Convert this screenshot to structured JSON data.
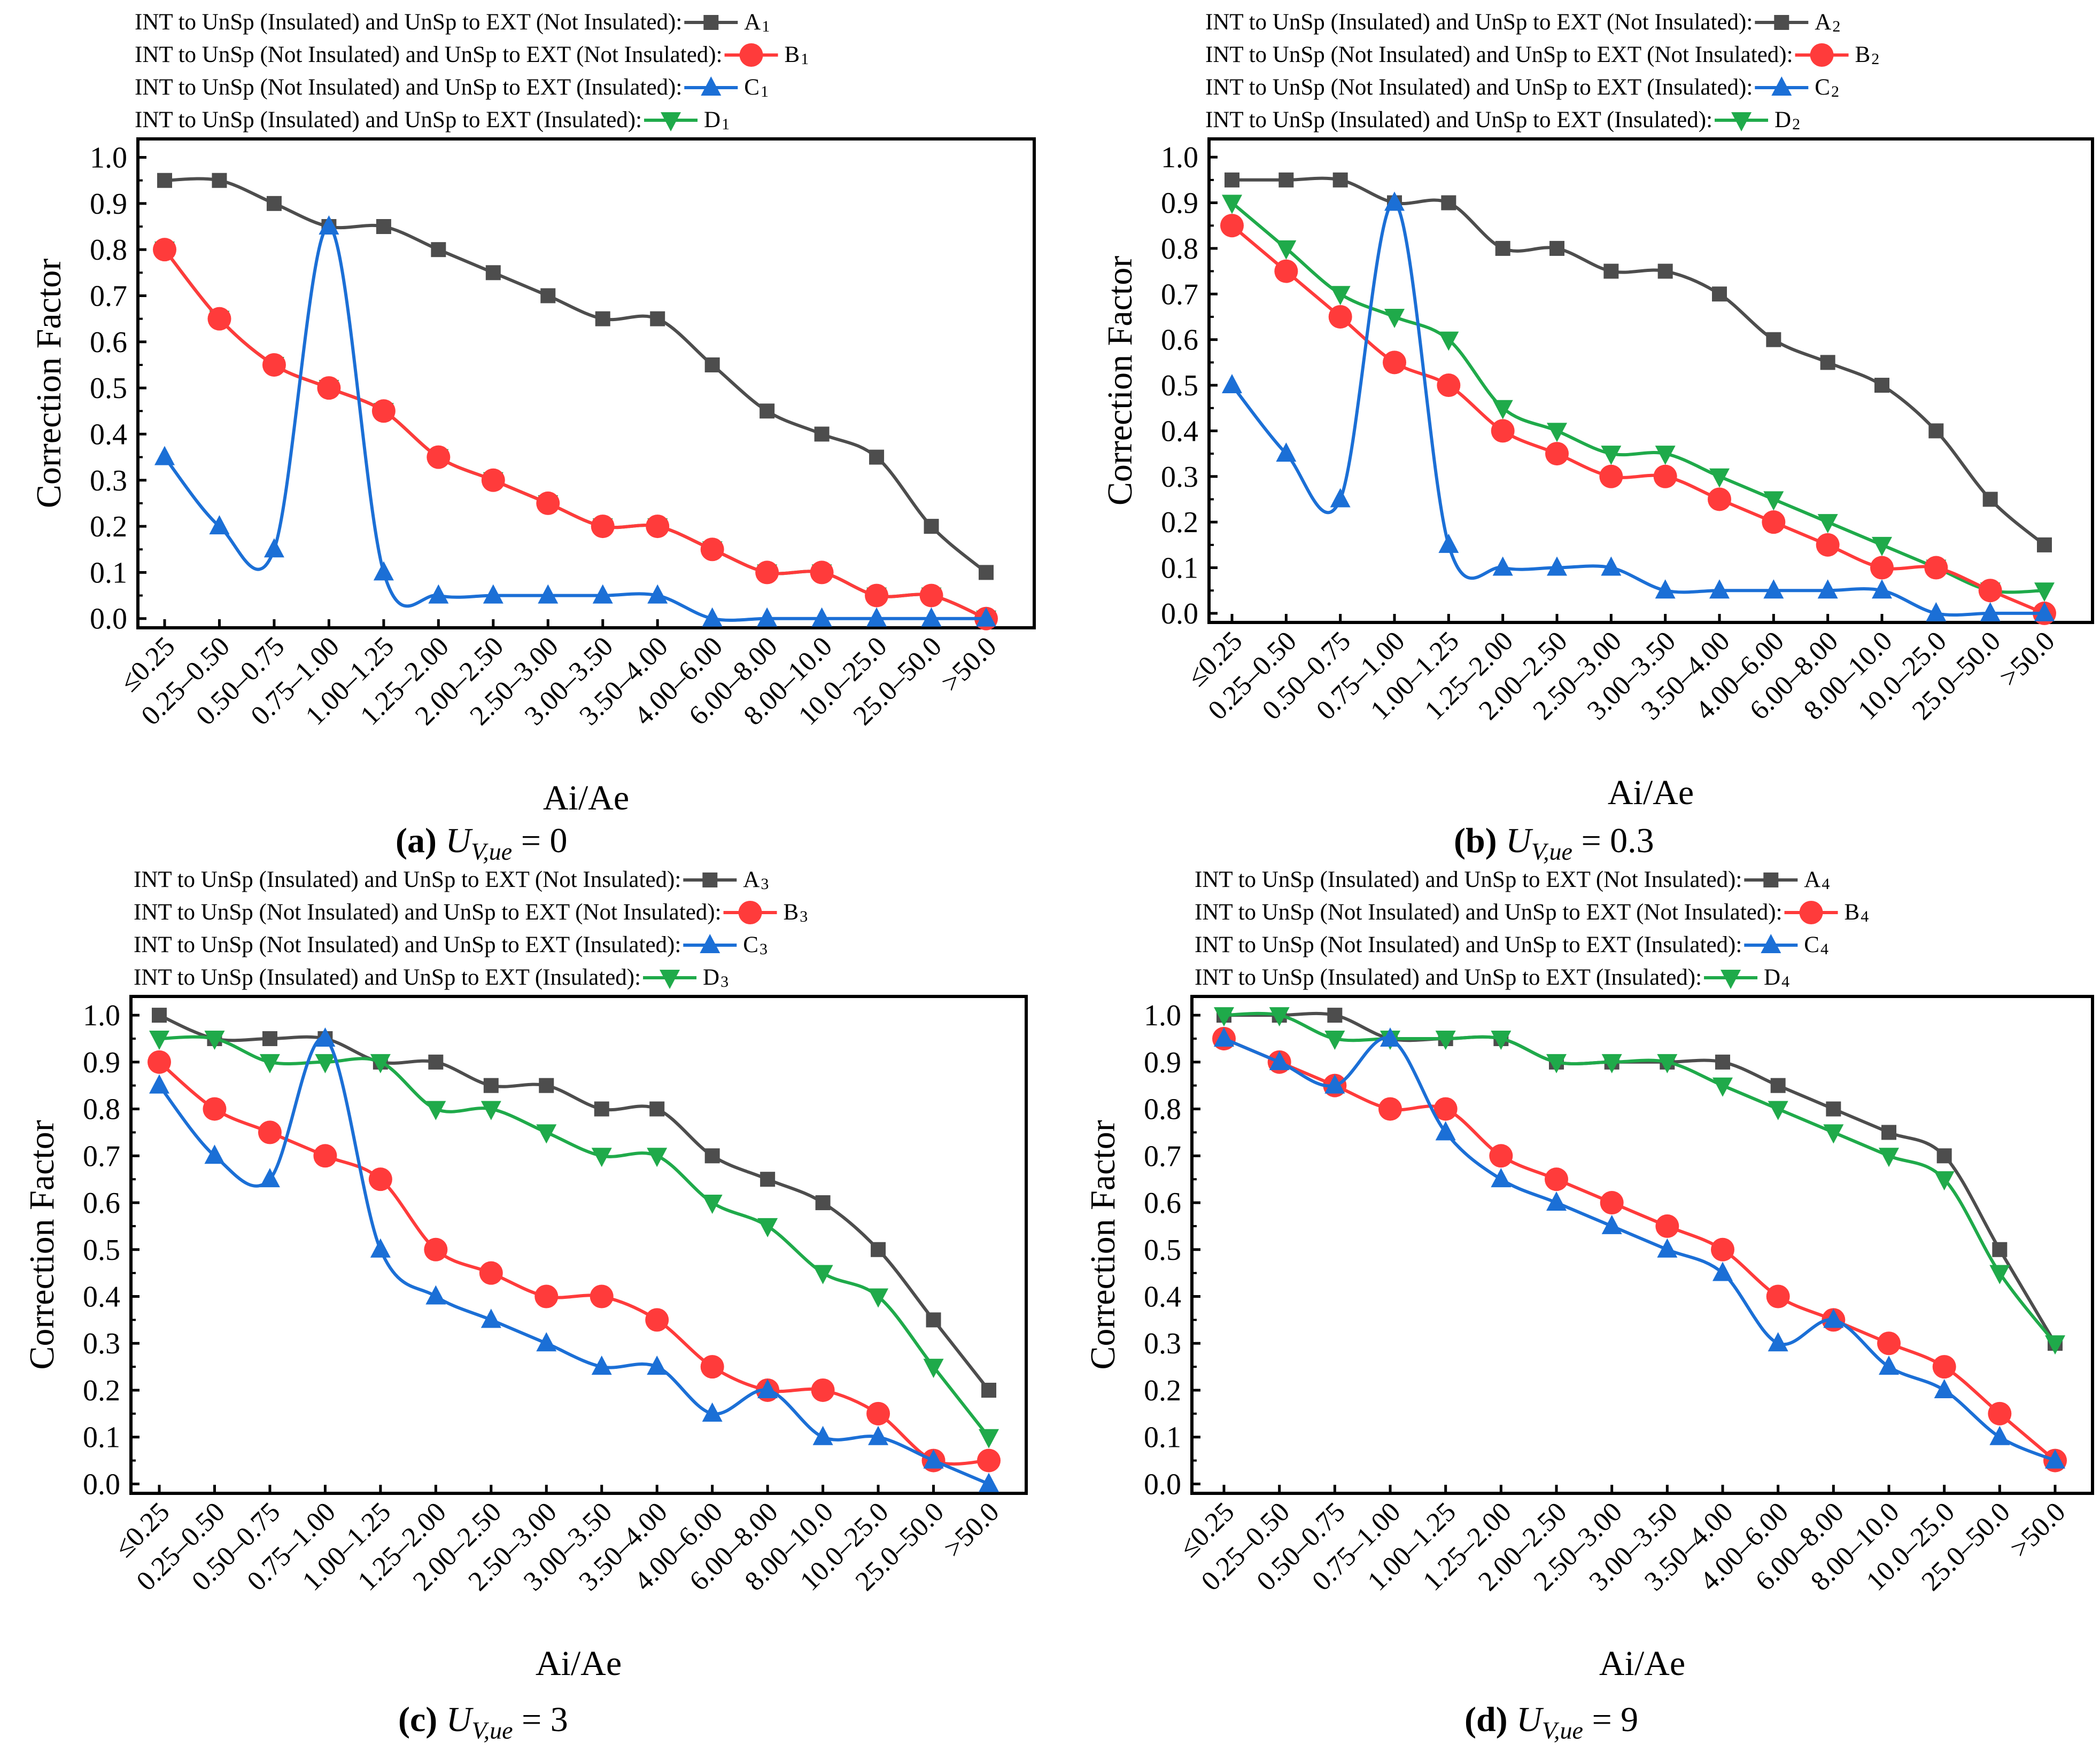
{
  "colors": {
    "A": "#4d4d4d",
    "B": "#ff3b3b",
    "C": "#1b6fd6",
    "D": "#1faa4a",
    "frame": "#000000"
  },
  "marker_shapes": {
    "A": "square",
    "B": "circle",
    "C": "triangle-up",
    "D": "triangle-down"
  },
  "chart_data": [
    {
      "type": "line",
      "panel": "a",
      "caption": {
        "letter": "(a)",
        "symbol": "U",
        "subscript": "V,ue",
        "value": "= 0"
      },
      "legend": [
        {
          "key": "A",
          "text": "INT to UnSp (Insulated) and UnSp to EXT (Not Insulated):",
          "id": "A",
          "sub": "1"
        },
        {
          "key": "B",
          "text": "INT to UnSp (Not Insulated) and UnSp to EXT (Not Insulated):",
          "id": "B",
          "sub": "1"
        },
        {
          "key": "C",
          "text": "INT to UnSp (Not Insulated) and UnSp to EXT (Insulated):",
          "id": "C",
          "sub": "1"
        },
        {
          "key": "D",
          "text": "INT to UnSp (Insulated) and UnSp to EXT (Insulated):",
          "id": "D",
          "sub": "1"
        }
      ],
      "xlabel": "Ai/Ae",
      "ylabel": "Correction Factor",
      "ylim": [
        -0.02,
        1.04
      ],
      "yticks": [
        "0.0",
        "0.1",
        "0.2",
        "0.3",
        "0.4",
        "0.5",
        "0.6",
        "0.7",
        "0.8",
        "0.9",
        "1.0"
      ],
      "categories": [
        "≤0.25",
        "0.25–0.50",
        "0.50–0.75",
        "0.75–1.00",
        "1.00–1.25",
        "1.25–2.00",
        "2.00–2.50",
        "2.50–3.00",
        "3.00–3.50",
        "3.50–4.00",
        "4.00–6.00",
        "6.00–8.00",
        "8.00–10.0",
        "10.0–25.0",
        "25.0–50.0",
        ">50.0"
      ],
      "series": [
        {
          "key": "A",
          "name": "A1",
          "values": [
            0.95,
            0.95,
            0.9,
            0.85,
            0.85,
            0.8,
            0.75,
            0.7,
            0.65,
            0.65,
            0.55,
            0.45,
            0.4,
            0.35,
            0.2,
            0.1
          ]
        },
        {
          "key": "D",
          "name": "D1",
          "values": [
            0.8,
            0.65,
            0.55,
            0.5,
            0.45,
            0.35,
            0.3,
            0.25,
            0.2,
            0.2,
            0.15,
            0.1,
            0.1,
            0.05,
            0.05,
            0.0
          ]
        },
        {
          "key": "B",
          "name": "B1",
          "values": [
            0.8,
            0.65,
            0.55,
            0.5,
            0.45,
            0.35,
            0.3,
            0.25,
            0.2,
            0.2,
            0.15,
            0.1,
            0.1,
            0.05,
            0.05,
            0.0
          ]
        },
        {
          "key": "C",
          "name": "C1",
          "values": [
            0.35,
            0.2,
            0.15,
            0.85,
            0.1,
            0.05,
            0.05,
            0.05,
            0.05,
            0.05,
            0.0,
            0.0,
            0.0,
            0.0,
            0.0,
            0.0
          ]
        }
      ]
    },
    {
      "type": "line",
      "panel": "b",
      "caption": {
        "letter": "(b)",
        "symbol": "U",
        "subscript": "V,ue",
        "value": "= 0.3"
      },
      "legend": [
        {
          "key": "A",
          "text": "INT to UnSp (Insulated) and UnSp to EXT (Not Insulated):",
          "id": "A",
          "sub": "2"
        },
        {
          "key": "B",
          "text": "INT to UnSp (Not Insulated) and UnSp to EXT (Not Insulated):",
          "id": "B",
          "sub": "2"
        },
        {
          "key": "C",
          "text": "INT to UnSp (Not Insulated) and UnSp to EXT (Insulated):",
          "id": "C",
          "sub": "2"
        },
        {
          "key": "D",
          "text": "INT to UnSp (Insulated) and UnSp to EXT (Insulated):",
          "id": "D",
          "sub": "2"
        }
      ],
      "xlabel": "Ai/Ae",
      "ylabel": "Correction Factor",
      "ylim": [
        -0.02,
        1.04
      ],
      "yticks": [
        "0.0",
        "0.1",
        "0.2",
        "0.3",
        "0.4",
        "0.5",
        "0.6",
        "0.7",
        "0.8",
        "0.9",
        "1.0"
      ],
      "categories": [
        "≤0.25",
        "0.25–0.50",
        "0.50–0.75",
        "0.75–1.00",
        "1.00–1.25",
        "1.25–2.00",
        "2.00–2.50",
        "2.50–3.00",
        "3.00–3.50",
        "3.50–4.00",
        "4.00–6.00",
        "6.00–8.00",
        "8.00–10.0",
        "10.0–25.0",
        "25.0–50.0",
        ">50.0"
      ],
      "series": [
        {
          "key": "A",
          "name": "A2",
          "values": [
            0.95,
            0.95,
            0.95,
            0.9,
            0.9,
            0.8,
            0.8,
            0.75,
            0.75,
            0.7,
            0.6,
            0.55,
            0.5,
            0.4,
            0.25,
            0.15
          ]
        },
        {
          "key": "D",
          "name": "D2",
          "values": [
            0.9,
            0.8,
            0.7,
            0.65,
            0.6,
            0.45,
            0.4,
            0.35,
            0.35,
            0.3,
            0.25,
            0.2,
            0.15,
            0.1,
            0.05,
            0.05
          ]
        },
        {
          "key": "B",
          "name": "B2",
          "values": [
            0.85,
            0.75,
            0.65,
            0.55,
            0.5,
            0.4,
            0.35,
            0.3,
            0.3,
            0.25,
            0.2,
            0.15,
            0.1,
            0.1,
            0.05,
            0.0
          ]
        },
        {
          "key": "C",
          "name": "C2",
          "values": [
            0.5,
            0.35,
            0.25,
            0.9,
            0.15,
            0.1,
            0.1,
            0.1,
            0.05,
            0.05,
            0.05,
            0.05,
            0.05,
            0.0,
            0.0,
            0.0
          ]
        }
      ]
    },
    {
      "type": "line",
      "panel": "c",
      "caption": {
        "letter": "(c)",
        "symbol": "U",
        "subscript": "V,ue",
        "value": "= 3"
      },
      "legend": [
        {
          "key": "A",
          "text": "INT to UnSp (Insulated) and UnSp to EXT (Not Insulated):",
          "id": "A",
          "sub": "3"
        },
        {
          "key": "B",
          "text": "INT to UnSp (Not Insulated) and UnSp to EXT (Not Insulated):",
          "id": "B",
          "sub": "3"
        },
        {
          "key": "C",
          "text": "INT to UnSp (Not Insulated) and UnSp to EXT (Insulated):",
          "id": "C",
          "sub": "3"
        },
        {
          "key": "D",
          "text": "INT to UnSp (Insulated) and UnSp to EXT (Insulated):",
          "id": "D",
          "sub": "3"
        }
      ],
      "xlabel": "Ai/Ae",
      "ylabel": "Correction Factor",
      "ylim": [
        -0.02,
        1.04
      ],
      "yticks": [
        "0.0",
        "0.1",
        "0.2",
        "0.3",
        "0.4",
        "0.5",
        "0.6",
        "0.7",
        "0.8",
        "0.9",
        "1.0"
      ],
      "categories": [
        "≤0.25",
        "0.25–0.50",
        "0.50–0.75",
        "0.75–1.00",
        "1.00–1.25",
        "1.25–2.00",
        "2.00–2.50",
        "2.50–3.00",
        "3.00–3.50",
        "3.50–4.00",
        "4.00–6.00",
        "6.00–8.00",
        "8.00–10.0",
        "10.0–25.0",
        "25.0–50.0",
        ">50.0"
      ],
      "series": [
        {
          "key": "A",
          "name": "A3",
          "values": [
            1.0,
            0.95,
            0.95,
            0.95,
            0.9,
            0.9,
            0.85,
            0.85,
            0.8,
            0.8,
            0.7,
            0.65,
            0.6,
            0.5,
            0.35,
            0.2
          ]
        },
        {
          "key": "D",
          "name": "D3",
          "values": [
            0.95,
            0.95,
            0.9,
            0.9,
            0.9,
            0.8,
            0.8,
            0.75,
            0.7,
            0.7,
            0.6,
            0.55,
            0.45,
            0.4,
            0.25,
            0.1
          ]
        },
        {
          "key": "B",
          "name": "B3",
          "values": [
            0.9,
            0.8,
            0.75,
            0.7,
            0.65,
            0.5,
            0.45,
            0.4,
            0.4,
            0.35,
            0.25,
            0.2,
            0.2,
            0.15,
            0.05,
            0.05
          ]
        },
        {
          "key": "C",
          "name": "C3",
          "values": [
            0.85,
            0.7,
            0.65,
            0.95,
            0.5,
            0.4,
            0.35,
            0.3,
            0.25,
            0.25,
            0.15,
            0.2,
            0.1,
            0.1,
            0.05,
            0.0
          ]
        }
      ]
    },
    {
      "type": "line",
      "panel": "d",
      "caption": {
        "letter": "(d)",
        "symbol": "U",
        "subscript": "V,ue",
        "value": "= 9"
      },
      "legend": [
        {
          "key": "A",
          "text": "INT to UnSp (Insulated) and UnSp to EXT (Not Insulated):",
          "id": "A",
          "sub": "4"
        },
        {
          "key": "B",
          "text": "INT to UnSp (Not Insulated) and UnSp to EXT (Not Insulated):",
          "id": "B",
          "sub": "4"
        },
        {
          "key": "C",
          "text": "INT to UnSp (Not Insulated) and UnSp to EXT (Insulated):",
          "id": "C",
          "sub": "4"
        },
        {
          "key": "D",
          "text": "INT to UnSp (Insulated) and UnSp to EXT (Insulated):",
          "id": "D",
          "sub": "4"
        }
      ],
      "xlabel": "Ai/Ae",
      "ylabel": "Correction Factor",
      "ylim": [
        -0.02,
        1.04
      ],
      "yticks": [
        "0.0",
        "0.1",
        "0.2",
        "0.3",
        "0.4",
        "0.5",
        "0.6",
        "0.7",
        "0.8",
        "0.9",
        "1.0"
      ],
      "categories": [
        "≤0.25",
        "0.25–0.50",
        "0.50–0.75",
        "0.75–1.00",
        "1.00–1.25",
        "1.25–2.00",
        "2.00–2.50",
        "2.50–3.00",
        "3.00–3.50",
        "3.50–4.00",
        "4.00–6.00",
        "6.00–8.00",
        "8.00–10.0",
        "10.0–25.0",
        "25.0–50.0",
        ">50.0"
      ],
      "series": [
        {
          "key": "A",
          "name": "A4",
          "values": [
            1.0,
            1.0,
            1.0,
            0.95,
            0.95,
            0.95,
            0.9,
            0.9,
            0.9,
            0.9,
            0.85,
            0.8,
            0.75,
            0.7,
            0.5,
            0.3
          ]
        },
        {
          "key": "D",
          "name": "D4",
          "values": [
            1.0,
            1.0,
            0.95,
            0.95,
            0.95,
            0.95,
            0.9,
            0.9,
            0.9,
            0.85,
            0.8,
            0.75,
            0.7,
            0.65,
            0.45,
            0.3
          ]
        },
        {
          "key": "B",
          "name": "B4",
          "values": [
            0.95,
            0.9,
            0.85,
            0.8,
            0.8,
            0.7,
            0.65,
            0.6,
            0.55,
            0.5,
            0.4,
            0.35,
            0.3,
            0.25,
            0.15,
            0.05
          ]
        },
        {
          "key": "C",
          "name": "C4",
          "values": [
            0.95,
            0.9,
            0.85,
            0.95,
            0.75,
            0.65,
            0.6,
            0.55,
            0.5,
            0.45,
            0.3,
            0.35,
            0.25,
            0.2,
            0.1,
            0.05
          ]
        }
      ]
    }
  ]
}
